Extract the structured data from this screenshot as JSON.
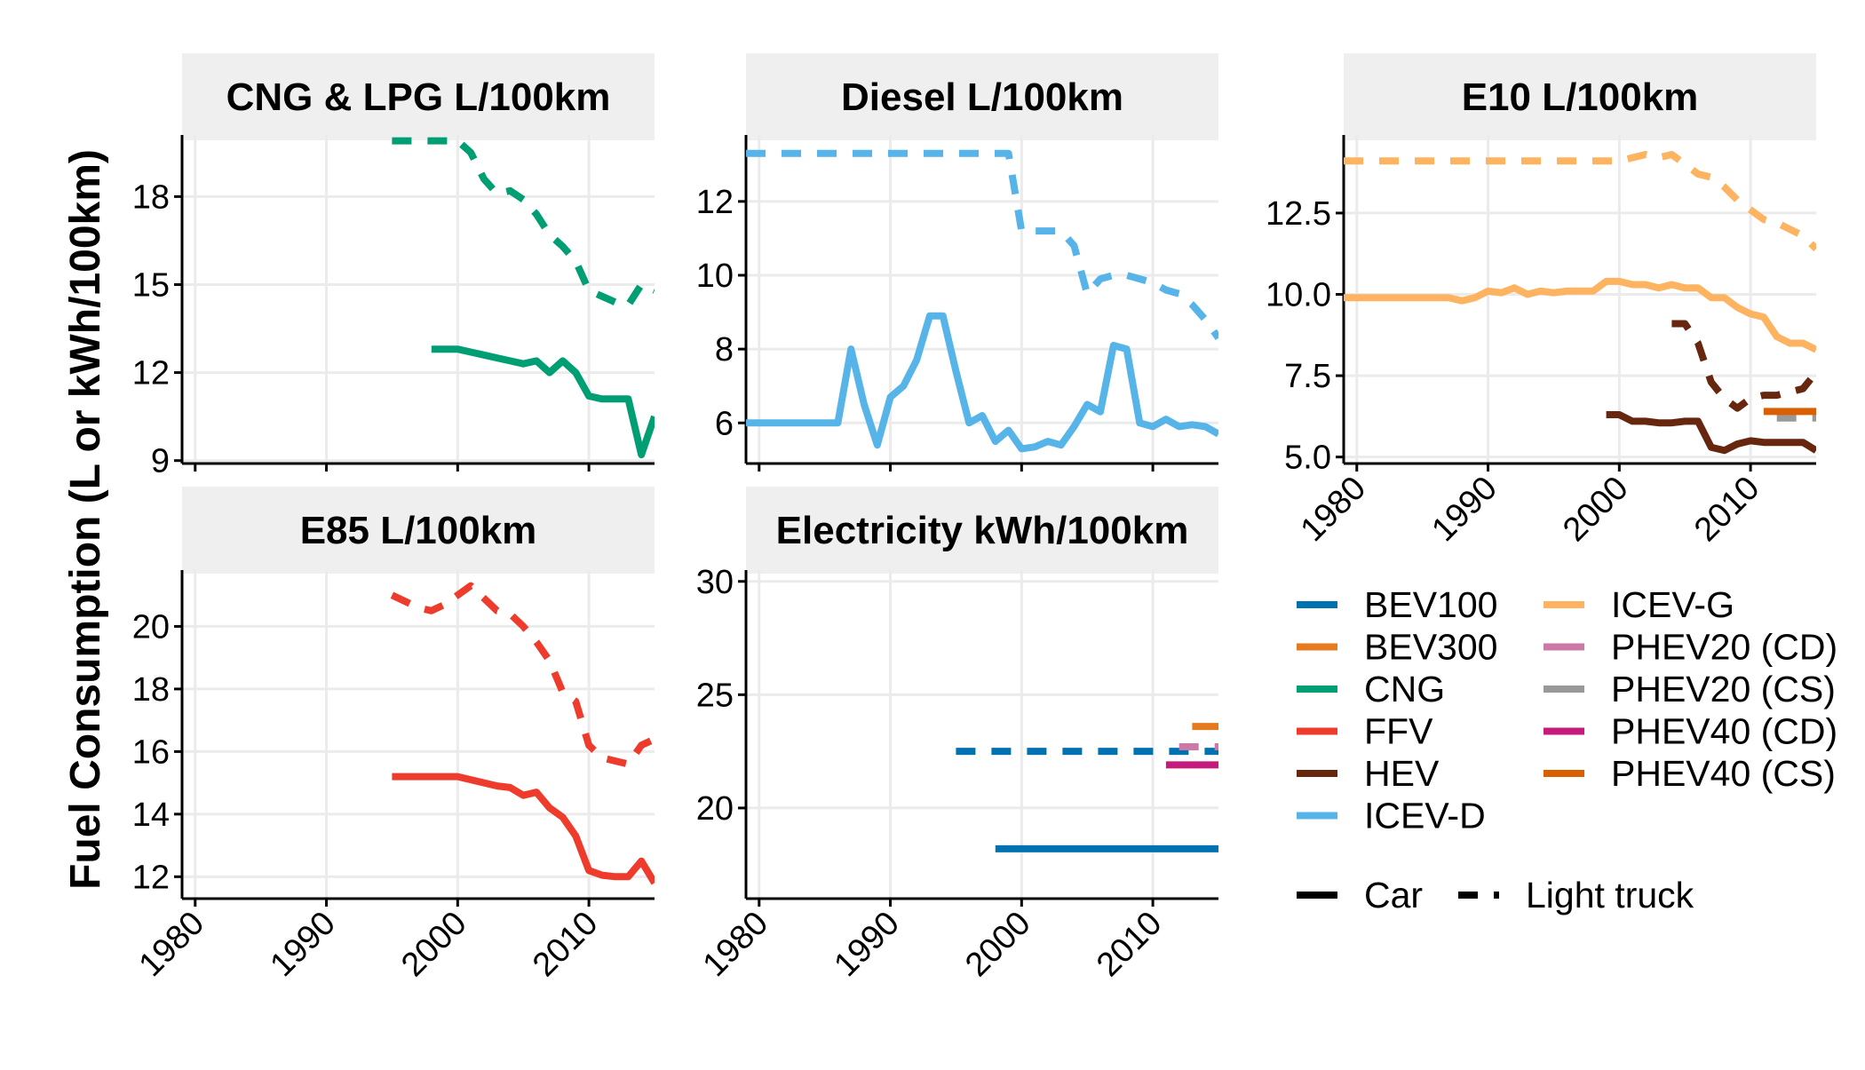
{
  "chart_data": {
    "type": "line",
    "ylabel": "Fuel Consumption (L or kWh/100km)",
    "xlim": [
      1979,
      2015
    ],
    "x_ticks": [
      1980,
      1990,
      2000,
      2010
    ],
    "panels": [
      {
        "id": "cng",
        "title": "CNG & LPG L/100km",
        "ylim": [
          8.9,
          20.1
        ],
        "y_ticks": [
          9,
          12,
          15,
          18
        ],
        "y_tick_labels": [
          "9",
          "12",
          "15",
          "18"
        ],
        "series": [
          {
            "name": "CNG",
            "linetype": "Light truck",
            "x": [
              1995,
              1996,
              1997,
              1998,
              1999,
              2000,
              2001,
              2002,
              2003,
              2004,
              2005,
              2006,
              2007,
              2008,
              2009,
              2010,
              2011,
              2012,
              2013,
              2014,
              2015
            ],
            "y": [
              19.9,
              19.9,
              19.9,
              19.9,
              19.9,
              19.9,
              19.5,
              18.6,
              18.1,
              18.2,
              17.9,
              17.4,
              16.7,
              16.3,
              15.8,
              14.8,
              14.6,
              14.4,
              14.3,
              15.0,
              14.8
            ]
          },
          {
            "name": "CNG",
            "linetype": "Car",
            "x": [
              1998,
              1999,
              2000,
              2001,
              2002,
              2003,
              2004,
              2005,
              2006,
              2007,
              2008,
              2009,
              2010,
              2011,
              2012,
              2013,
              2014,
              2015
            ],
            "y": [
              12.8,
              12.8,
              12.8,
              12.7,
              12.6,
              12.5,
              12.4,
              12.3,
              12.4,
              12.0,
              12.4,
              12.0,
              11.2,
              11.1,
              11.1,
              11.1,
              9.2,
              10.5
            ]
          }
        ]
      },
      {
        "id": "diesel",
        "title": "Diesel L/100km",
        "ylim": [
          4.9,
          13.8
        ],
        "y_ticks": [
          6,
          8,
          10,
          12
        ],
        "y_tick_labels": [
          "6",
          "8",
          "10",
          "12"
        ],
        "series": [
          {
            "name": "ICEV-D",
            "linetype": "Light truck",
            "x": [
              1979,
              1985,
              1990,
              1995,
              1998,
              1999,
              2000,
              2001,
              2002,
              2003,
              2004,
              2005,
              2006,
              2007,
              2008,
              2009,
              2010,
              2011,
              2012,
              2013,
              2014,
              2015
            ],
            "y": [
              13.3,
              13.3,
              13.3,
              13.3,
              13.3,
              13.3,
              11.2,
              11.2,
              11.2,
              11.2,
              10.8,
              9.5,
              9.9,
              10.0,
              10.0,
              9.9,
              9.8,
              9.6,
              9.5,
              9.2,
              8.8,
              8.3
            ]
          },
          {
            "name": "ICEV-D",
            "linetype": "Car",
            "x": [
              1979,
              1980,
              1981,
              1982,
              1983,
              1984,
              1985,
              1986,
              1987,
              1988,
              1989,
              1990,
              1991,
              1992,
              1993,
              1994,
              1995,
              1996,
              1997,
              1998,
              1999,
              2000,
              2001,
              2002,
              2003,
              2004,
              2005,
              2006,
              2007,
              2008,
              2009,
              2010,
              2011,
              2012,
              2013,
              2014,
              2015
            ],
            "y": [
              6.0,
              6.0,
              6.0,
              6.0,
              6.0,
              6.0,
              6.0,
              6.0,
              8.0,
              6.5,
              5.4,
              6.7,
              7.0,
              7.7,
              8.9,
              8.9,
              7.4,
              6.0,
              6.2,
              5.5,
              5.8,
              5.3,
              5.35,
              5.5,
              5.4,
              5.9,
              6.5,
              6.3,
              8.1,
              8.0,
              6.0,
              5.9,
              6.1,
              5.9,
              5.95,
              5.9,
              5.7
            ]
          }
        ]
      },
      {
        "id": "e10",
        "title": "E10 L/100km",
        "ylim": [
          4.8,
          14.9
        ],
        "y_ticks": [
          5.0,
          7.5,
          10.0,
          12.5
        ],
        "y_tick_labels": [
          "5.0",
          "7.5",
          "10.0",
          "12.5"
        ],
        "series": [
          {
            "name": "ICEV-G",
            "linetype": "Light truck",
            "x": [
              1979,
              1985,
              1990,
              1995,
              1999,
              2000,
              2001,
              2002,
              2003,
              2004,
              2005,
              2006,
              2007,
              2008,
              2009,
              2010,
              2011,
              2012,
              2013,
              2014,
              2015
            ],
            "y": [
              14.1,
              14.1,
              14.1,
              14.1,
              14.1,
              14.1,
              14.2,
              14.3,
              14.2,
              14.3,
              14.0,
              13.7,
              13.6,
              13.3,
              12.9,
              12.6,
              12.3,
              12.2,
              12.0,
              11.8,
              11.4
            ]
          },
          {
            "name": "ICEV-G",
            "linetype": "Car",
            "x": [
              1979,
              1980,
              1981,
              1982,
              1983,
              1984,
              1985,
              1986,
              1987,
              1988,
              1989,
              1990,
              1991,
              1992,
              1993,
              1994,
              1995,
              1996,
              1997,
              1998,
              1999,
              2000,
              2001,
              2002,
              2003,
              2004,
              2005,
              2006,
              2007,
              2008,
              2009,
              2010,
              2011,
              2012,
              2013,
              2014,
              2015
            ],
            "y": [
              9.9,
              9.9,
              9.9,
              9.9,
              9.9,
              9.9,
              9.9,
              9.9,
              9.9,
              9.8,
              9.9,
              10.1,
              10.05,
              10.2,
              10.0,
              10.1,
              10.05,
              10.1,
              10.1,
              10.1,
              10.4,
              10.4,
              10.3,
              10.3,
              10.2,
              10.3,
              10.2,
              10.2,
              9.9,
              9.9,
              9.6,
              9.4,
              9.3,
              8.7,
              8.5,
              8.5,
              8.3
            ]
          },
          {
            "name": "HEV",
            "linetype": "Light truck",
            "x": [
              2004,
              2005,
              2006,
              2007,
              2008,
              2009,
              2010,
              2011,
              2012,
              2013,
              2014,
              2015
            ],
            "y": [
              9.1,
              9.1,
              8.5,
              7.3,
              6.8,
              6.5,
              6.8,
              6.9,
              6.9,
              7.0,
              7.1,
              7.6
            ]
          },
          {
            "name": "HEV",
            "linetype": "Car",
            "x": [
              1999,
              2000,
              2001,
              2002,
              2003,
              2004,
              2005,
              2006,
              2007,
              2008,
              2009,
              2010,
              2011,
              2012,
              2013,
              2014,
              2015
            ],
            "y": [
              6.3,
              6.3,
              6.1,
              6.1,
              6.05,
              6.05,
              6.1,
              6.1,
              5.3,
              5.2,
              5.4,
              5.5,
              5.45,
              5.45,
              5.45,
              5.45,
              5.2
            ]
          },
          {
            "name": "PHEV20 (CS)",
            "linetype": "Light truck",
            "x": [
              2012,
              2015
            ],
            "y": [
              6.2,
              6.2
            ]
          },
          {
            "name": "PHEV40 (CS)",
            "linetype": "Car",
            "x": [
              2011,
              2015
            ],
            "y": [
              6.4,
              6.4
            ]
          }
        ]
      },
      {
        "id": "e85",
        "title": "E85 L/100km",
        "ylim": [
          11.3,
          21.8
        ],
        "y_ticks": [
          12,
          14,
          16,
          18,
          20
        ],
        "y_tick_labels": [
          "12",
          "14",
          "16",
          "18",
          "20"
        ],
        "series": [
          {
            "name": "FFV",
            "linetype": "Light truck",
            "x": [
              1995,
              1996,
              1997,
              1998,
              1999,
              2000,
              2001,
              2002,
              2003,
              2004,
              2005,
              2006,
              2007,
              2008,
              2009,
              2010,
              2011,
              2012,
              2013,
              2014,
              2015
            ],
            "y": [
              21.0,
              20.8,
              20.6,
              20.5,
              20.7,
              21.0,
              21.3,
              20.9,
              20.5,
              20.4,
              20.0,
              19.5,
              18.9,
              17.9,
              17.6,
              16.2,
              15.8,
              15.7,
              15.6,
              16.2,
              16.4
            ]
          },
          {
            "name": "FFV",
            "linetype": "Car",
            "x": [
              1995,
              1996,
              1997,
              1998,
              1999,
              2000,
              2001,
              2002,
              2003,
              2004,
              2005,
              2006,
              2007,
              2008,
              2009,
              2010,
              2011,
              2012,
              2013,
              2014,
              2015
            ],
            "y": [
              15.2,
              15.2,
              15.2,
              15.2,
              15.2,
              15.2,
              15.1,
              15.0,
              14.9,
              14.85,
              14.6,
              14.7,
              14.2,
              13.9,
              13.3,
              12.2,
              12.05,
              12.0,
              12.0,
              12.5,
              11.8
            ]
          }
        ]
      },
      {
        "id": "elec",
        "title": "Electricity kWh/100km",
        "ylim": [
          16.0,
          30.5
        ],
        "y_ticks": [
          20,
          25,
          30
        ],
        "y_tick_labels": [
          "20",
          "25",
          "30"
        ],
        "series": [
          {
            "name": "BEV100",
            "linetype": "Light truck",
            "x": [
              1995,
              2015
            ],
            "y": [
              22.5,
              22.5
            ]
          },
          {
            "name": "BEV100",
            "linetype": "Car",
            "x": [
              1998,
              2015
            ],
            "y": [
              18.2,
              18.2
            ]
          },
          {
            "name": "BEV300",
            "linetype": "Car",
            "x": [
              2013,
              2015
            ],
            "y": [
              23.6,
              23.6
            ]
          },
          {
            "name": "PHEV20 (CD)",
            "linetype": "Light truck",
            "x": [
              2012,
              2015
            ],
            "y": [
              22.7,
              22.7
            ]
          },
          {
            "name": "PHEV40 (CD)",
            "linetype": "Car",
            "x": [
              2011,
              2015
            ],
            "y": [
              21.9,
              21.9
            ]
          }
        ]
      }
    ],
    "legend": {
      "placement": "bottom-right",
      "fuel_types": [
        {
          "label": "BEV100",
          "color": "#0072B2"
        },
        {
          "label": "BEV300",
          "color": "#E67A1F"
        },
        {
          "label": "CNG",
          "color": "#009E73"
        },
        {
          "label": "FFV",
          "color": "#EF3B2C"
        },
        {
          "label": "HEV",
          "color": "#67270F"
        },
        {
          "label": "ICEV-D",
          "color": "#56B4E9"
        },
        {
          "label": "ICEV-G",
          "color": "#FDB35F"
        },
        {
          "label": "PHEV20 (CD)",
          "color": "#CC79A7"
        },
        {
          "label": "PHEV20 (CS)",
          "color": "#999999"
        },
        {
          "label": "PHEV40 (CD)",
          "color": "#C51B7D"
        },
        {
          "label": "PHEV40 (CS)",
          "color": "#D95F02"
        }
      ],
      "vehicle_types": [
        {
          "label": "Car",
          "linetype": "solid"
        },
        {
          "label": "Light truck",
          "linetype": "dashed"
        }
      ]
    }
  }
}
